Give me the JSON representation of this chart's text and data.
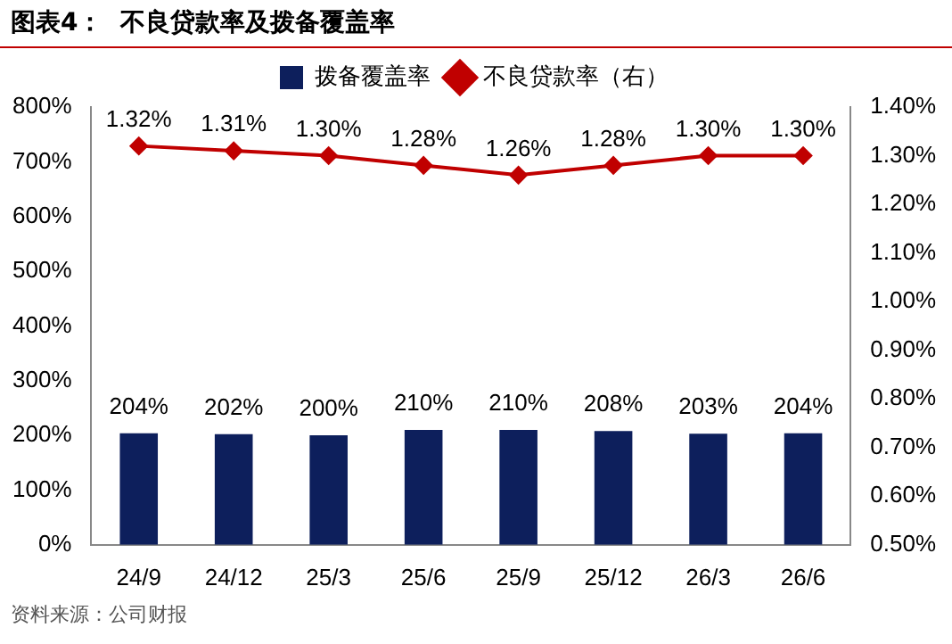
{
  "chart_data": {
    "type": "bar",
    "title": "图表4：  不良贷款率及拨备覆盖率",
    "annotations": [
      "资料来源：公司财报"
    ],
    "categories": [
      "24/9",
      "24/12",
      "25/3",
      "25/6",
      "25/9",
      "25/12",
      "26/3",
      "26/6"
    ],
    "series": [
      {
        "name": "拨备覆盖率",
        "color": "#0d1f5c",
        "values": [
          204,
          202,
          200,
          210,
          210,
          208,
          203,
          204
        ],
        "value_labels": [
          "204%",
          "202%",
          "200%",
          "210%",
          "210%",
          "208%",
          "203%",
          "204%"
        ]
      },
      {
        "name": "不良贷款率（右）",
        "type": "line",
        "axis": "y2",
        "color": "#c00000",
        "marker": "diamond",
        "values": [
          1.32,
          1.31,
          1.3,
          1.28,
          1.26,
          1.28,
          1.3,
          1.3
        ],
        "value_labels": [
          "1.32%",
          "1.31%",
          "1.30%",
          "1.28%",
          "1.26%",
          "1.28%",
          "1.30%",
          "1.30%"
        ]
      }
    ],
    "ylim": [
      0,
      800
    ],
    "yticks": [
      {
        "value": 0,
        "label": "0%"
      },
      {
        "value": 100,
        "label": "100%"
      },
      {
        "value": 200,
        "label": "200%"
      },
      {
        "value": 300,
        "label": "300%"
      },
      {
        "value": 400,
        "label": "400%"
      },
      {
        "value": 500,
        "label": "500%"
      },
      {
        "value": 600,
        "label": "600%"
      },
      {
        "value": 700,
        "label": "700%"
      },
      {
        "value": 800,
        "label": "800%"
      }
    ],
    "y2lim": [
      0.5,
      1.4
    ],
    "y2ticks": [
      {
        "value": 0.5,
        "label": "0.50%"
      },
      {
        "value": 0.6,
        "label": "0.60%"
      },
      {
        "value": 0.7,
        "label": "0.70%"
      },
      {
        "value": 0.8,
        "label": "0.80%"
      },
      {
        "value": 0.9,
        "label": "0.90%"
      },
      {
        "value": 1.0,
        "label": "1.00%"
      },
      {
        "value": 1.1,
        "label": "1.10%"
      },
      {
        "value": 1.2,
        "label": "1.20%"
      },
      {
        "value": 1.3,
        "label": "1.30%"
      },
      {
        "value": 1.4,
        "label": "1.40%"
      }
    ],
    "grid": false,
    "legend": "top"
  }
}
